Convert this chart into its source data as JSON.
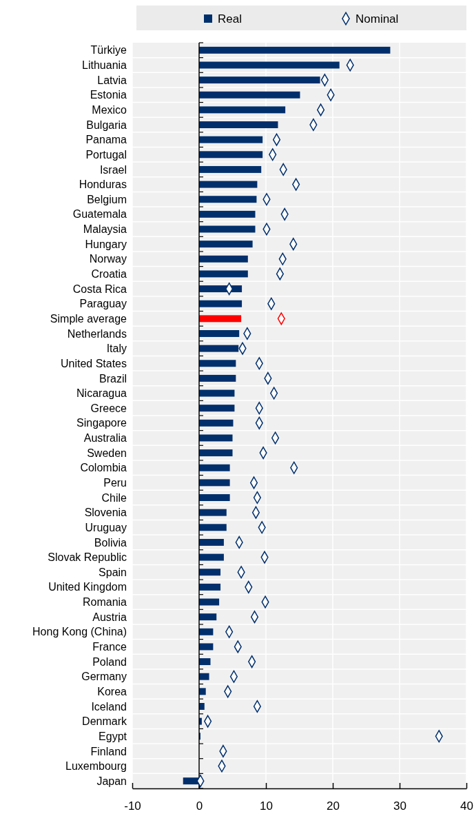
{
  "chart_data": {
    "type": "bar",
    "orientation": "horizontal",
    "categories": [
      "Türkiye",
      "Lithuania",
      "Latvia",
      "Estonia",
      "Mexico",
      "Bulgaria",
      "Panama",
      "Portugal",
      "Israel",
      "Honduras",
      "Belgium",
      "Guatemala",
      "Malaysia",
      "Hungary",
      "Norway",
      "Croatia",
      "Costa Rica",
      "Paraguay",
      "Simple average",
      "Netherlands",
      "Italy",
      "United States",
      "Brazil",
      "Nicaragua",
      "Greece",
      "Singapore",
      "Australia",
      "Sweden",
      "Colombia",
      "Peru",
      "Chile",
      "Slovenia",
      "Uruguay",
      "Bolivia",
      "Slovak Republic",
      "Spain",
      "United Kingdom",
      "Romania",
      "Austria",
      "Hong Kong (China)",
      "France",
      "Poland",
      "Germany",
      "Korea",
      "Iceland",
      "Denmark",
      "Egypt",
      "Finland",
      "Luxembourg",
      "Japan"
    ],
    "series": [
      {
        "name": "Real",
        "color": "#002f6c",
        "colors": [
          "#002f6c",
          "#002f6c",
          "#002f6c",
          "#002f6c",
          "#002f6c",
          "#002f6c",
          "#002f6c",
          "#002f6c",
          "#002f6c",
          "#002f6c",
          "#002f6c",
          "#002f6c",
          "#002f6c",
          "#002f6c",
          "#002f6c",
          "#002f6c",
          "#002f6c",
          "#002f6c",
          "#ff0000",
          "#002f6c",
          "#002f6c",
          "#002f6c",
          "#002f6c",
          "#002f6c",
          "#002f6c",
          "#002f6c",
          "#002f6c",
          "#002f6c",
          "#002f6c",
          "#002f6c",
          "#002f6c",
          "#002f6c",
          "#002f6c",
          "#002f6c",
          "#002f6c",
          "#002f6c",
          "#002f6c",
          "#002f6c",
          "#002f6c",
          "#002f6c",
          "#002f6c",
          "#002f6c",
          "#002f6c",
          "#002f6c",
          "#002f6c",
          "#002f6c",
          "#002f6c",
          "#002f6c",
          "#002f6c",
          "#002f6c"
        ],
        "values": [
          28.6,
          21.0,
          18.1,
          15.1,
          12.9,
          11.8,
          9.5,
          9.5,
          9.3,
          8.7,
          8.6,
          8.4,
          8.4,
          8.0,
          7.3,
          7.3,
          6.4,
          6.4,
          6.3,
          6.0,
          5.9,
          5.5,
          5.5,
          5.3,
          5.3,
          5.1,
          5.0,
          5.0,
          4.6,
          4.6,
          4.6,
          4.1,
          4.1,
          3.7,
          3.7,
          3.2,
          3.2,
          3.0,
          2.6,
          2.1,
          2.1,
          1.7,
          1.5,
          1.0,
          0.8,
          0.4,
          0.2,
          0,
          0,
          -2.4
        ]
      },
      {
        "name": "Nominal",
        "type": "scatter",
        "marker": "diamond",
        "color": "#002f6c",
        "colors": [
          "#002f6c",
          "#002f6c",
          "#002f6c",
          "#002f6c",
          "#002f6c",
          "#002f6c",
          "#002f6c",
          "#002f6c",
          "#002f6c",
          "#002f6c",
          "#002f6c",
          "#002f6c",
          "#002f6c",
          "#002f6c",
          "#002f6c",
          "#002f6c",
          "#002f6c",
          "#002f6c",
          "#ff0000",
          "#002f6c",
          "#002f6c",
          "#002f6c",
          "#002f6c",
          "#002f6c",
          "#002f6c",
          "#002f6c",
          "#002f6c",
          "#002f6c",
          "#002f6c",
          "#002f6c",
          "#002f6c",
          "#002f6c",
          "#002f6c",
          "#002f6c",
          "#002f6c",
          "#002f6c",
          "#002f6c",
          "#002f6c",
          "#002f6c",
          "#002f6c",
          "#002f6c",
          "#002f6c",
          "#002f6c",
          "#002f6c",
          "#002f6c",
          "#002f6c",
          "#002f6c",
          "#002f6c",
          "#002f6c",
          "#002f6c"
        ],
        "values": [
          null,
          22.6,
          18.8,
          19.7,
          18.2,
          17.1,
          11.6,
          11.0,
          12.6,
          14.5,
          10.1,
          12.8,
          10.1,
          14.1,
          12.5,
          12.1,
          4.5,
          10.8,
          12.3,
          7.2,
          6.5,
          9.0,
          10.3,
          11.2,
          9.0,
          9.0,
          11.4,
          9.6,
          14.2,
          8.2,
          8.7,
          8.5,
          9.4,
          6.0,
          9.8,
          6.3,
          7.4,
          9.9,
          8.3,
          4.5,
          5.8,
          7.9,
          5.2,
          4.3,
          8.7,
          1.3,
          35.9,
          3.6,
          3.4,
          0.2
        ]
      }
    ],
    "xlim": [
      -10,
      40
    ],
    "xticks": [
      -10,
      0,
      10,
      20,
      30,
      40
    ],
    "grid": "x",
    "legend": "top"
  }
}
